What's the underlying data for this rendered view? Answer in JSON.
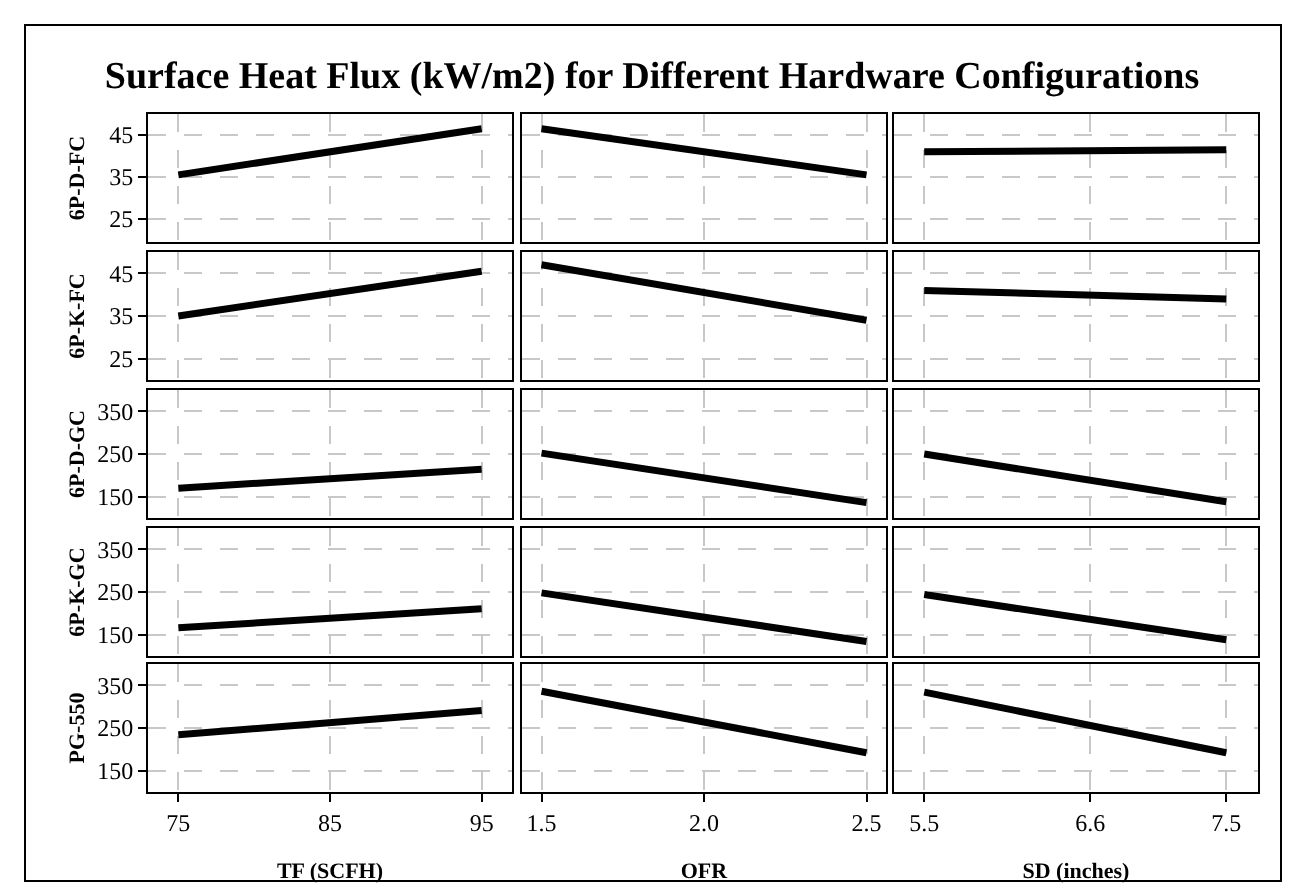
{
  "chart_data": [
    {
      "type": "line",
      "title": "Surface Heat Flux (kW/m2) for Different Hardware Configurations",
      "ylabel": "6P-D-FC",
      "x": [
        75,
        95
      ],
      "xlim": [
        73,
        97
      ],
      "xticks": [
        75,
        85,
        95
      ],
      "ylim": [
        19.5,
        50
      ],
      "yticks": [
        25,
        35,
        45
      ],
      "grid": true,
      "tick_labels": "y",
      "series": [
        {
          "color": "#000000",
          "values": [
            35.5,
            46.5
          ]
        }
      ]
    },
    {
      "type": "line",
      "x": [
        1.5,
        2.5
      ],
      "xlim": [
        1.44,
        2.56
      ],
      "xticks": [
        1.5,
        2.0,
        2.5
      ],
      "ylim": [
        19.5,
        50
      ],
      "yticks": [
        25,
        35,
        45
      ],
      "grid": true,
      "tick_labels": false,
      "series": [
        {
          "color": "#000000",
          "values": [
            46.5,
            35.5
          ]
        }
      ]
    },
    {
      "type": "line",
      "x": [
        5.5,
        7.5
      ],
      "xlim": [
        5.3,
        7.71
      ],
      "xticks": [
        5.5,
        6.6,
        7.5
      ],
      "ylim": [
        19.5,
        50
      ],
      "yticks": [
        25,
        35,
        45
      ],
      "grid": true,
      "tick_labels": false,
      "series": [
        {
          "color": "#000000",
          "values": [
            41,
            41.5
          ]
        }
      ]
    },
    {
      "type": "line",
      "ylabel": "6P-K-FC",
      "x": [
        75,
        95
      ],
      "xlim": [
        73,
        97
      ],
      "xticks": [
        75,
        85,
        95
      ],
      "ylim": [
        20,
        50
      ],
      "yticks": [
        25,
        35,
        45
      ],
      "grid": true,
      "tick_labels": "y",
      "series": [
        {
          "color": "#000000",
          "values": [
            35,
            45.5
          ]
        }
      ]
    },
    {
      "type": "line",
      "x": [
        1.5,
        2.5
      ],
      "xlim": [
        1.44,
        2.56
      ],
      "xticks": [
        1.5,
        2.0,
        2.5
      ],
      "ylim": [
        20,
        50
      ],
      "yticks": [
        25,
        35,
        45
      ],
      "grid": true,
      "tick_labels": false,
      "series": [
        {
          "color": "#000000",
          "values": [
            47,
            34
          ]
        }
      ]
    },
    {
      "type": "line",
      "x": [
        5.5,
        7.5
      ],
      "xlim": [
        5.3,
        7.71
      ],
      "xticks": [
        5.5,
        6.6,
        7.5
      ],
      "ylim": [
        20,
        50
      ],
      "yticks": [
        25,
        35,
        45
      ],
      "grid": true,
      "tick_labels": false,
      "series": [
        {
          "color": "#000000",
          "values": [
            41,
            39
          ]
        }
      ]
    },
    {
      "type": "line",
      "ylabel": "6P-D-GC",
      "x": [
        75,
        95
      ],
      "xlim": [
        73,
        97
      ],
      "xticks": [
        75,
        85,
        95
      ],
      "ylim": [
        100,
        400
      ],
      "yticks": [
        150,
        250,
        350
      ],
      "grid": true,
      "tick_labels": "y",
      "series": [
        {
          "color": "#000000",
          "values": [
            170,
            214
          ]
        }
      ]
    },
    {
      "type": "line",
      "x": [
        1.5,
        2.5
      ],
      "xlim": [
        1.44,
        2.56
      ],
      "xticks": [
        1.5,
        2.0,
        2.5
      ],
      "ylim": [
        100,
        400
      ],
      "yticks": [
        150,
        250,
        350
      ],
      "grid": true,
      "tick_labels": false,
      "series": [
        {
          "color": "#000000",
          "values": [
            252,
            136
          ]
        }
      ]
    },
    {
      "type": "line",
      "x": [
        5.5,
        7.5
      ],
      "xlim": [
        5.3,
        7.71
      ],
      "xticks": [
        5.5,
        6.6,
        7.5
      ],
      "ylim": [
        100,
        400
      ],
      "yticks": [
        150,
        250,
        350
      ],
      "grid": true,
      "tick_labels": false,
      "series": [
        {
          "color": "#000000",
          "values": [
            250,
            138
          ]
        }
      ]
    },
    {
      "type": "line",
      "ylabel": "6P-K-GC",
      "x": [
        75,
        95
      ],
      "xlim": [
        73,
        97
      ],
      "xticks": [
        75,
        85,
        95
      ],
      "ylim": [
        100,
        400
      ],
      "yticks": [
        150,
        250,
        350
      ],
      "grid": true,
      "tick_labels": "y",
      "series": [
        {
          "color": "#000000",
          "values": [
            166,
            211
          ]
        }
      ]
    },
    {
      "type": "line",
      "x": [
        1.5,
        2.5
      ],
      "xlim": [
        1.44,
        2.56
      ],
      "xticks": [
        1.5,
        2.0,
        2.5
      ],
      "ylim": [
        100,
        400
      ],
      "yticks": [
        150,
        250,
        350
      ],
      "grid": true,
      "tick_labels": false,
      "series": [
        {
          "color": "#000000",
          "values": [
            248,
            134
          ]
        }
      ]
    },
    {
      "type": "line",
      "x": [
        5.5,
        7.5
      ],
      "xlim": [
        5.3,
        7.71
      ],
      "xticks": [
        5.5,
        6.6,
        7.5
      ],
      "ylim": [
        100,
        400
      ],
      "yticks": [
        150,
        250,
        350
      ],
      "grid": true,
      "tick_labels": false,
      "series": [
        {
          "color": "#000000",
          "values": [
            244,
            138
          ]
        }
      ]
    },
    {
      "type": "line",
      "ylabel": "PG-550",
      "xlabel": "TF (SCFH)",
      "x": [
        75,
        95
      ],
      "xlim": [
        73,
        97
      ],
      "xticks": [
        75,
        85,
        95
      ],
      "ylim": [
        100,
        400
      ],
      "yticks": [
        150,
        250,
        350
      ],
      "grid": true,
      "series": [
        {
          "color": "#000000",
          "values": [
            234,
            291
          ]
        }
      ]
    },
    {
      "type": "line",
      "xlabel": "OFR",
      "x": [
        1.5,
        2.5
      ],
      "xlim": [
        1.44,
        2.56
      ],
      "xticks": [
        1.5,
        {
          "value": 2.0,
          "label": "2.0"
        },
        2.5
      ],
      "ylim": [
        100,
        400
      ],
      "yticks": [
        150,
        250,
        350
      ],
      "grid": true,
      "tick_labels": "x",
      "series": [
        {
          "color": "#000000",
          "values": [
            336,
            192
          ]
        }
      ]
    },
    {
      "type": "line",
      "xlabel": "SD (inches)",
      "x": [
        5.5,
        7.5
      ],
      "xlim": [
        5.3,
        7.71
      ],
      "xticks": [
        5.5,
        6.6,
        7.5
      ],
      "ylim": [
        100,
        400
      ],
      "yticks": [
        150,
        250,
        350
      ],
      "grid": true,
      "tick_labels": "x",
      "series": [
        {
          "color": "#000000",
          "values": [
            334,
            192
          ]
        }
      ]
    }
  ]
}
